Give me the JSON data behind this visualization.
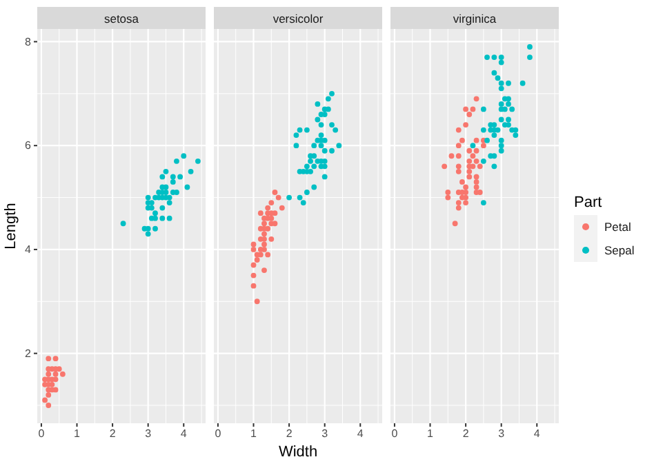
{
  "chart_data": [
    {
      "type": "scatter",
      "title": "setosa",
      "ylabel": "Length",
      "xlim": [
        -0.115,
        4.615
      ],
      "ylim": [
        0.655,
        8.245
      ],
      "xticks": [
        0,
        1,
        2,
        3,
        4
      ],
      "yticks": [
        2,
        4,
        6,
        8
      ],
      "grid": true,
      "marker": "circle",
      "series": [
        {
          "color": "#f8766d",
          "x": [
            0.2,
            0.2,
            0.2,
            0.4,
            0.3,
            0.1,
            0.2,
            0.1,
            0.1,
            0.2,
            0.4,
            0.4,
            0.3,
            0.3,
            0.2,
            0.2,
            0.5,
            0.2,
            0.4,
            0.3,
            0.6,
            0.4
          ],
          "values": [
            1.4,
            1.3,
            1.5,
            1.7,
            1.4,
            1.5,
            1.6,
            1.4,
            1.1,
            1.2,
            1.5,
            1.3,
            1.7,
            1.5,
            1.7,
            1.0,
            1.7,
            1.9,
            1.6,
            1.3,
            1.6,
            1.9
          ]
        },
        {
          "color": "#00bfc4",
          "x": [
            3.5,
            3.0,
            3.2,
            3.1,
            3.6,
            3.9,
            3.4,
            3.4,
            2.9,
            3.1,
            3.7,
            3.4,
            3.0,
            3.0,
            4.0,
            4.4,
            3.8,
            3.8,
            3.4,
            3.7,
            3.6,
            3.3,
            3.0,
            3.5,
            3.4,
            3.1,
            4.1,
            4.2,
            3.2,
            3.5,
            3.6,
            3.0,
            3.4,
            3.5,
            2.3,
            3.2,
            3.2,
            3.7,
            3.3
          ],
          "values": [
            5.1,
            4.9,
            4.7,
            4.6,
            5.0,
            5.4,
            4.6,
            5.0,
            4.4,
            4.9,
            5.4,
            4.8,
            4.8,
            4.3,
            5.8,
            5.7,
            5.7,
            5.1,
            5.4,
            5.1,
            4.6,
            5.1,
            5.0,
            5.2,
            5.2,
            4.8,
            5.2,
            5.5,
            5.0,
            5.5,
            4.9,
            4.4,
            5.1,
            5.0,
            4.5,
            4.4,
            4.6,
            5.3,
            5.0
          ]
        }
      ]
    },
    {
      "type": "scatter",
      "title": "versicolor",
      "xlabel": "Width",
      "xlim": [
        -0.115,
        4.615
      ],
      "ylim": [
        0.655,
        8.245
      ],
      "xticks": [
        0,
        1,
        2,
        3,
        4
      ],
      "yticks": [
        2,
        4,
        6,
        8
      ],
      "tick_labels": "x",
      "grid": true,
      "marker": "circle",
      "series": [
        {
          "color": "#f8766d",
          "x": [
            1.4,
            1.5,
            1.5,
            1.3,
            1.5,
            1.3,
            1.6,
            1.0,
            1.3,
            1.4,
            1.0,
            1.5,
            1.0,
            1.3,
            1.4,
            1.0,
            1.1,
            1.8,
            1.2,
            1.3,
            1.4,
            1.7,
            1.1,
            1.0,
            1.2,
            1.6,
            1.6,
            1.5,
            1.3,
            1.3,
            1.2,
            1.4,
            1.2,
            1.3,
            1.2,
            1.1
          ],
          "values": [
            4.7,
            4.5,
            4.9,
            4.0,
            4.6,
            4.5,
            4.7,
            3.3,
            4.6,
            3.9,
            3.5,
            4.2,
            4.0,
            3.6,
            4.4,
            4.1,
            3.9,
            4.8,
            4.7,
            4.3,
            4.8,
            5.0,
            3.8,
            3.7,
            3.9,
            5.1,
            4.5,
            4.7,
            4.4,
            4.1,
            4.4,
            4.6,
            4.0,
            4.2,
            4.2,
            3.0
          ]
        },
        {
          "color": "#00bfc4",
          "x": [
            3.2,
            3.2,
            3.1,
            2.3,
            2.8,
            2.8,
            3.3,
            2.4,
            2.9,
            2.7,
            2.0,
            3.0,
            2.2,
            2.9,
            2.9,
            3.1,
            3.0,
            2.7,
            2.2,
            2.5,
            3.2,
            2.8,
            2.5,
            2.9,
            3.0,
            2.8,
            3.0,
            2.9,
            2.6,
            2.4,
            2.7,
            3.0,
            3.4,
            2.3,
            2.5,
            2.6,
            3.0,
            2.6,
            2.3,
            2.7,
            3.0,
            2.9,
            2.9,
            2.5
          ],
          "values": [
            7.0,
            6.4,
            6.9,
            5.5,
            6.5,
            5.7,
            6.3,
            4.9,
            6.6,
            5.2,
            5.0,
            5.9,
            6.0,
            6.1,
            5.6,
            6.7,
            5.6,
            5.8,
            6.2,
            5.6,
            5.9,
            6.1,
            6.3,
            6.4,
            6.6,
            6.8,
            6.7,
            6.0,
            5.7,
            5.5,
            6.0,
            5.4,
            6.0,
            6.3,
            5.5,
            5.5,
            6.1,
            5.8,
            5.0,
            5.6,
            5.7,
            5.7,
            6.2,
            5.1
          ]
        }
      ]
    },
    {
      "type": "scatter",
      "title": "virginica",
      "legend_title": "Part",
      "legend": "right",
      "xlim": [
        -0.115,
        4.615
      ],
      "ylim": [
        0.655,
        8.245
      ],
      "xticks": [
        0,
        1,
        2,
        3,
        4
      ],
      "yticks": [
        2,
        4,
        6,
        8
      ],
      "tick_labels": "x",
      "grid": true,
      "marker": "circle",
      "series": [
        {
          "name": "Petal",
          "color": "#f8766d",
          "x": [
            2.5,
            1.9,
            2.1,
            1.8,
            2.2,
            2.1,
            1.7,
            1.8,
            1.8,
            2.5,
            2.0,
            1.9,
            2.1,
            2.0,
            2.4,
            2.3,
            1.8,
            2.2,
            2.3,
            1.5,
            2.3,
            2.0,
            2.0,
            1.8,
            2.1,
            1.8,
            1.8,
            2.1,
            1.6,
            1.9,
            2.0,
            2.2,
            1.5,
            1.4,
            2.3,
            2.4,
            2.1,
            2.3,
            2.3,
            2.3,
            1.9,
            2.0,
            2.3,
            1.8
          ],
          "values": [
            6.0,
            5.1,
            5.9,
            5.6,
            5.8,
            6.6,
            4.5,
            6.3,
            5.8,
            6.1,
            5.1,
            5.3,
            5.5,
            5.0,
            5.1,
            5.3,
            5.5,
            6.7,
            6.9,
            5.0,
            5.7,
            4.9,
            6.7,
            4.9,
            5.7,
            6.0,
            4.8,
            5.6,
            5.8,
            6.1,
            6.4,
            5.6,
            5.1,
            5.6,
            6.1,
            5.6,
            5.4,
            5.1,
            5.9,
            5.2,
            5.0,
            5.2,
            5.4,
            5.1
          ]
        },
        {
          "name": "Sepal",
          "color": "#00bfc4",
          "x": [
            3.3,
            2.7,
            3.0,
            2.9,
            3.0,
            3.0,
            2.5,
            2.9,
            2.5,
            3.6,
            3.2,
            2.7,
            3.0,
            2.5,
            2.8,
            3.2,
            3.8,
            2.6,
            2.2,
            3.2,
            2.8,
            2.8,
            2.7,
            3.3,
            3.2,
            2.8,
            3.0,
            2.8,
            3.0,
            2.8,
            3.8,
            2.8,
            2.6,
            3.0,
            3.4,
            3.1,
            3.0,
            3.1,
            3.1,
            3.2,
            3.0,
            2.5,
            3.4,
            3.0
          ],
          "values": [
            6.3,
            5.8,
            7.1,
            6.3,
            6.5,
            7.6,
            4.9,
            7.3,
            6.7,
            7.2,
            6.5,
            6.4,
            6.8,
            5.7,
            5.8,
            6.4,
            7.7,
            7.7,
            6.0,
            6.9,
            5.6,
            7.7,
            6.3,
            6.7,
            7.2,
            6.2,
            6.1,
            6.4,
            7.2,
            7.4,
            7.9,
            6.3,
            6.1,
            7.7,
            6.3,
            6.4,
            6.0,
            6.9,
            6.7,
            6.8,
            6.7,
            6.3,
            6.2,
            5.9
          ]
        }
      ]
    }
  ]
}
